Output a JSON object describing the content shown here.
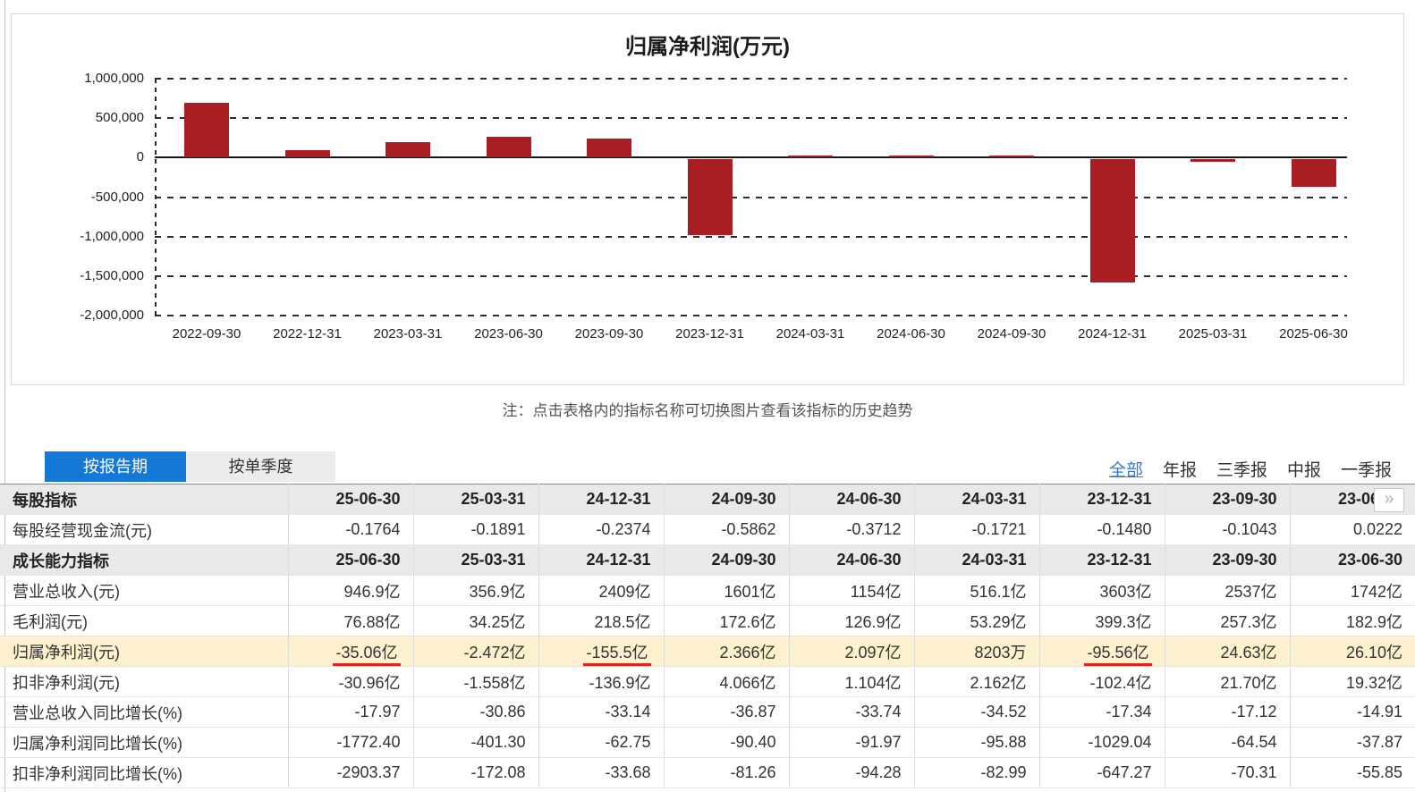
{
  "page": {
    "note": "注：点击表格内的指标名称可切换图片查看该指标的历史趋势"
  },
  "chart_data": {
    "type": "bar",
    "title": "归属净利润(万元)",
    "categories": [
      "2022-09-30",
      "2022-12-31",
      "2023-03-31",
      "2023-06-30",
      "2023-09-30",
      "2023-12-31",
      "2024-03-31",
      "2024-06-30",
      "2024-09-30",
      "2024-12-31",
      "2025-03-31",
      "2025-06-30"
    ],
    "values": [
      700000,
      100000,
      200000,
      261000,
      246300,
      -955600,
      8203,
      20970,
      23660,
      -1555000,
      -24720,
      -350600
    ],
    "ylim": [
      -2000000,
      1000000
    ],
    "yticks": [
      1000000,
      500000,
      0,
      -500000,
      -1000000,
      -1500000,
      -2000000
    ],
    "xlabel": "",
    "ylabel": "",
    "grid": "horizontal-dashed",
    "legend": "none",
    "bar_color": "#a81e22"
  },
  "tabs": [
    {
      "label": "按报告期",
      "active": true
    },
    {
      "label": "按单季度",
      "active": false
    }
  ],
  "period_filters": [
    {
      "label": "全部",
      "active": true
    },
    {
      "label": "年报",
      "active": false
    },
    {
      "label": "三季报",
      "active": false
    },
    {
      "label": "中报",
      "active": false
    },
    {
      "label": "一季报",
      "active": false
    }
  ],
  "icons": {
    "next_columns": "»"
  },
  "colors": {
    "accent_blue": "#1478d6",
    "link_blue": "#2c7bd0",
    "bar_red": "#a81e22",
    "underline_red": "#e0231a",
    "highlight_yellow": "#fcf0ce"
  },
  "table": {
    "dates": [
      "25-06-30",
      "25-03-31",
      "24-12-31",
      "24-09-30",
      "24-06-30",
      "24-03-31",
      "23-12-31",
      "23-09-30",
      "23-06-30"
    ],
    "sections": [
      {
        "title": "每股指标",
        "rows": [
          {
            "label": "每股经营现金流(元)",
            "values": [
              "-0.1764",
              "-0.1891",
              "-0.2374",
              "-0.5862",
              "-0.3712",
              "-0.1721",
              "-0.1480",
              "-0.1043",
              "0.0222"
            ]
          }
        ]
      },
      {
        "title": "成长能力指标",
        "rows": [
          {
            "label": "营业总收入(元)",
            "values": [
              "946.9亿",
              "356.9亿",
              "2409亿",
              "1601亿",
              "1154亿",
              "516.1亿",
              "3603亿",
              "2537亿",
              "1742亿"
            ]
          },
          {
            "label": "毛利润(元)",
            "values": [
              "76.88亿",
              "34.25亿",
              "218.5亿",
              "172.6亿",
              "126.9亿",
              "53.29亿",
              "399.3亿",
              "257.3亿",
              "182.9亿"
            ]
          },
          {
            "label": "归属净利润(元)",
            "highlight": true,
            "underline": [
              0,
              2,
              6
            ],
            "values": [
              "-35.06亿",
              "-2.472亿",
              "-155.5亿",
              "2.366亿",
              "2.097亿",
              "8203万",
              "-95.56亿",
              "24.63亿",
              "26.10亿"
            ]
          },
          {
            "label": "扣非净利润(元)",
            "values": [
              "-30.96亿",
              "-1.558亿",
              "-136.9亿",
              "4.066亿",
              "1.104亿",
              "2.162亿",
              "-102.4亿",
              "21.70亿",
              "19.32亿"
            ]
          },
          {
            "label": "营业总收入同比增长(%)",
            "values": [
              "-17.97",
              "-30.86",
              "-33.14",
              "-36.87",
              "-33.74",
              "-34.52",
              "-17.34",
              "-17.12",
              "-14.91"
            ]
          },
          {
            "label": "归属净利润同比增长(%)",
            "values": [
              "-1772.40",
              "-401.30",
              "-62.75",
              "-90.40",
              "-91.97",
              "-95.88",
              "-1029.04",
              "-64.54",
              "-37.87"
            ]
          },
          {
            "label": "扣非净利润同比增长(%)",
            "values": [
              "-2903.37",
              "-172.08",
              "-33.68",
              "-81.26",
              "-94.28",
              "-82.99",
              "-647.27",
              "-70.31",
              "-55.85"
            ]
          }
        ]
      }
    ]
  }
}
